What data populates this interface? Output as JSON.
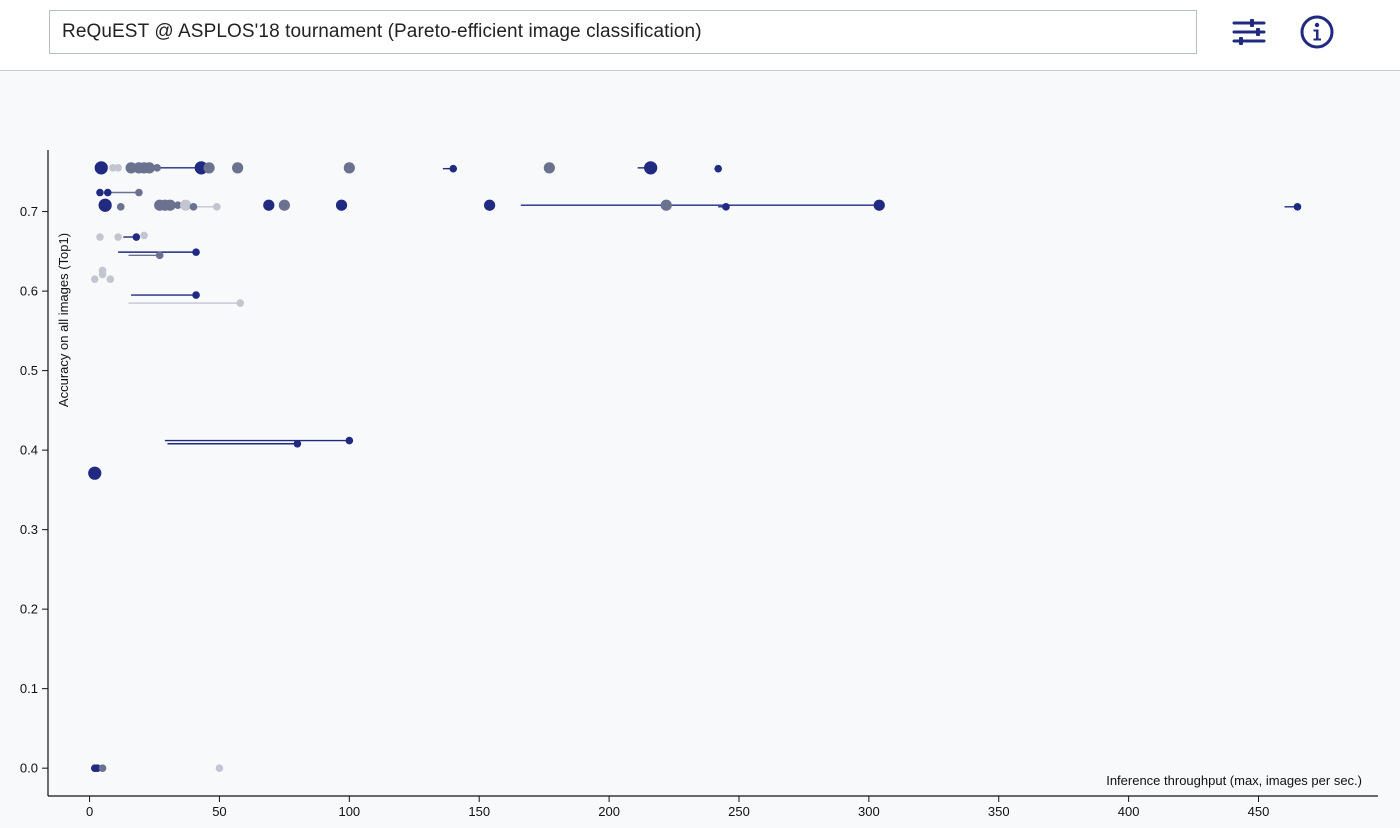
{
  "header": {
    "title": "ReQuEST @ ASPLOS'18 tournament (Pareto-efficient image classification)",
    "filter_icon": "sliders-icon",
    "info_icon": "info-circle-icon"
  },
  "colors": {
    "pareto": "#1f2a80",
    "mid": "#6b7290",
    "light": "#c3c6d0",
    "axis": "#111111"
  },
  "chart_data": {
    "type": "scatter",
    "xlabel": "Inference throughput (max, images per sec.)",
    "ylabel": "Accuracy on all images (Top1)",
    "xlim": [
      -16,
      496
    ],
    "ylim": [
      -0.035,
      0.785
    ],
    "xticks": [
      0,
      50,
      100,
      150,
      200,
      250,
      300,
      350,
      400,
      450
    ],
    "yticks": [
      0.0,
      0.1,
      0.2,
      0.3,
      0.4,
      0.5,
      0.6,
      0.7
    ],
    "points": [
      {
        "x": 4.5,
        "y": 0.755,
        "size": "l",
        "tone": "pareto"
      },
      {
        "x": 9,
        "y": 0.755,
        "size": "s",
        "tone": "light"
      },
      {
        "x": 11,
        "y": 0.755,
        "size": "s",
        "tone": "light"
      },
      {
        "x": 16,
        "y": 0.755,
        "size": "m",
        "tone": "mid"
      },
      {
        "x": 19,
        "y": 0.755,
        "size": "m",
        "tone": "mid"
      },
      {
        "x": 21,
        "y": 0.755,
        "size": "m",
        "tone": "mid"
      },
      {
        "x": 23,
        "y": 0.755,
        "size": "m",
        "tone": "mid"
      },
      {
        "x": 26,
        "y": 0.755,
        "size": "s",
        "tone": "mid"
      },
      {
        "x": 43,
        "y": 0.755,
        "size": "l",
        "tone": "pareto",
        "xmin": 26,
        "xmax": 43
      },
      {
        "x": 46,
        "y": 0.755,
        "size": "m",
        "tone": "mid"
      },
      {
        "x": 57,
        "y": 0.755,
        "size": "m",
        "tone": "mid"
      },
      {
        "x": 100,
        "y": 0.755,
        "size": "m",
        "tone": "mid"
      },
      {
        "x": 140,
        "y": 0.754,
        "size": "s",
        "tone": "pareto",
        "xmin": 136,
        "xmax": 140
      },
      {
        "x": 177,
        "y": 0.755,
        "size": "m",
        "tone": "mid"
      },
      {
        "x": 216,
        "y": 0.755,
        "size": "l",
        "tone": "pareto",
        "xmin": 211,
        "xmax": 216
      },
      {
        "x": 242,
        "y": 0.754,
        "size": "s",
        "tone": "pareto"
      },
      {
        "x": 4,
        "y": 0.724,
        "size": "s",
        "tone": "pareto"
      },
      {
        "x": 7,
        "y": 0.724,
        "size": "s",
        "tone": "pareto"
      },
      {
        "x": 19,
        "y": 0.724,
        "size": "s",
        "tone": "mid",
        "xmin": 7,
        "xmax": 19
      },
      {
        "x": 6,
        "y": 0.708,
        "size": "l",
        "tone": "pareto"
      },
      {
        "x": 12,
        "y": 0.706,
        "size": "s",
        "tone": "mid"
      },
      {
        "x": 27,
        "y": 0.708,
        "size": "m",
        "tone": "mid"
      },
      {
        "x": 29,
        "y": 0.708,
        "size": "m",
        "tone": "mid"
      },
      {
        "x": 31,
        "y": 0.708,
        "size": "m",
        "tone": "mid"
      },
      {
        "x": 34,
        "y": 0.708,
        "size": "s",
        "tone": "mid"
      },
      {
        "x": 37,
        "y": 0.708,
        "size": "m",
        "tone": "light"
      },
      {
        "x": 40,
        "y": 0.706,
        "size": "s",
        "tone": "mid"
      },
      {
        "x": 49,
        "y": 0.706,
        "size": "s",
        "tone": "light",
        "xmin": 40,
        "xmax": 49
      },
      {
        "x": 69,
        "y": 0.708,
        "size": "m",
        "tone": "pareto"
      },
      {
        "x": 75,
        "y": 0.708,
        "size": "m",
        "tone": "mid"
      },
      {
        "x": 97,
        "y": 0.708,
        "size": "m",
        "tone": "pareto"
      },
      {
        "x": 154,
        "y": 0.708,
        "size": "m",
        "tone": "pareto"
      },
      {
        "x": 222,
        "y": 0.708,
        "size": "m",
        "tone": "mid"
      },
      {
        "x": 245,
        "y": 0.706,
        "size": "s",
        "tone": "pareto",
        "xmin": 242,
        "xmax": 245
      },
      {
        "x": 304,
        "y": 0.708,
        "size": "m",
        "tone": "pareto",
        "xmin": 166,
        "xmax": 304
      },
      {
        "x": 465,
        "y": 0.706,
        "size": "s",
        "tone": "pareto",
        "xmin": 460,
        "xmax": 465
      },
      {
        "x": 4,
        "y": 0.668,
        "size": "s",
        "tone": "light"
      },
      {
        "x": 11,
        "y": 0.668,
        "size": "s",
        "tone": "light"
      },
      {
        "x": 18,
        "y": 0.668,
        "size": "s",
        "tone": "pareto",
        "xmin": 13,
        "xmax": 18
      },
      {
        "x": 21,
        "y": 0.67,
        "size": "s",
        "tone": "light"
      },
      {
        "x": 41,
        "y": 0.649,
        "size": "s",
        "tone": "pareto",
        "xmin": 11,
        "xmax": 41
      },
      {
        "x": 27,
        "y": 0.645,
        "size": "s",
        "tone": "mid",
        "xmin": 15,
        "xmax": 27
      },
      {
        "x": 5,
        "y": 0.626,
        "size": "s",
        "tone": "light"
      },
      {
        "x": 5,
        "y": 0.621,
        "size": "s",
        "tone": "light"
      },
      {
        "x": 2,
        "y": 0.615,
        "size": "s",
        "tone": "light"
      },
      {
        "x": 8,
        "y": 0.615,
        "size": "s",
        "tone": "light"
      },
      {
        "x": 41,
        "y": 0.595,
        "size": "s",
        "tone": "pareto",
        "xmin": 16,
        "xmax": 41
      },
      {
        "x": 58,
        "y": 0.585,
        "size": "s",
        "tone": "light",
        "xmin": 15,
        "xmax": 58
      },
      {
        "x": 100,
        "y": 0.412,
        "size": "s",
        "tone": "pareto",
        "xmin": 29,
        "xmax": 100
      },
      {
        "x": 80,
        "y": 0.408,
        "size": "s",
        "tone": "pareto",
        "xmin": 30,
        "xmax": 80
      },
      {
        "x": 2,
        "y": 0.371,
        "size": "l",
        "tone": "pareto"
      },
      {
        "x": 2,
        "y": 0.0,
        "size": "s",
        "tone": "pareto"
      },
      {
        "x": 3,
        "y": 0.0,
        "size": "s",
        "tone": "pareto"
      },
      {
        "x": 5,
        "y": 0.0,
        "size": "s",
        "tone": "mid"
      },
      {
        "x": 50,
        "y": 0.0,
        "size": "s",
        "tone": "light"
      }
    ]
  }
}
